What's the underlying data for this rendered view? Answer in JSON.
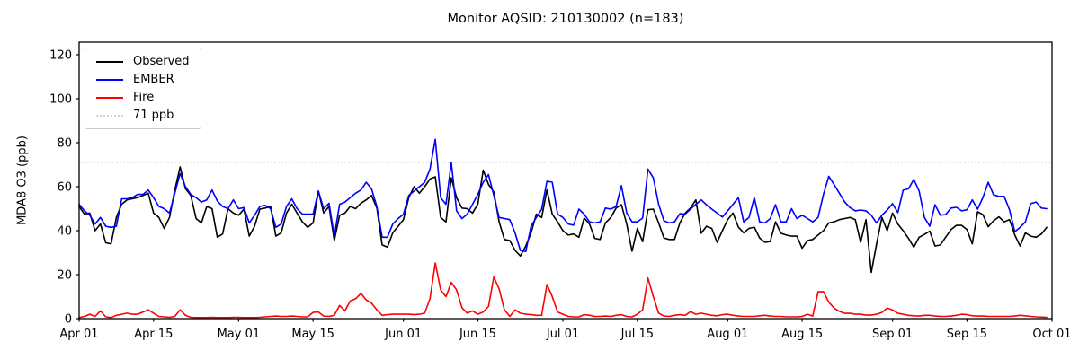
{
  "figure": {
    "title": "Monitor AQSID: 210130002 (n=183)"
  },
  "chart_data": {
    "type": "line",
    "title": "Monitor AQSID: 210130002 (n=183)",
    "xlabel": "",
    "ylabel": "MDA8 O3 (ppb)",
    "ylim": [
      0,
      125.7
    ],
    "y_ticks": [
      0,
      20,
      40,
      60,
      80,
      100,
      120
    ],
    "grid": false,
    "legend_position": "upper left",
    "x_days_total": 183,
    "x_tick_days": [
      0,
      14,
      30,
      44,
      61,
      75,
      91,
      105,
      122,
      136,
      153,
      167,
      183
    ],
    "x_tick_labels": [
      "Apr 01",
      "Apr 15",
      "May 01",
      "May 15",
      "Jun 01",
      "Jun 15",
      "Jul 01",
      "Jul 15",
      "Aug 01",
      "Aug 15",
      "Sep 01",
      "Sep 15",
      "Oct 01"
    ],
    "threshold": {
      "value": 71,
      "label": "71 ppb",
      "color": "#d3d3d3",
      "style": "dotted"
    },
    "series": [
      {
        "name": "Observed",
        "color": "#000000",
        "values": [
          51,
          47.5,
          48,
          40,
          43,
          34.5,
          34,
          46,
          52,
          54,
          54.5,
          55,
          56,
          57,
          48,
          46,
          41,
          46,
          58.5,
          69,
          59,
          56,
          45.5,
          43.5,
          51,
          50,
          37,
          38.5,
          50,
          48,
          47,
          49.8,
          37.5,
          42,
          49.8,
          50.3,
          51,
          37.5,
          39,
          48,
          52,
          48,
          44,
          41.5,
          43.5,
          58,
          48,
          51,
          35.5,
          47,
          48,
          51,
          50,
          52.5,
          54,
          56,
          50.3,
          33.5,
          32.5,
          39,
          42,
          45,
          55,
          60,
          57,
          60,
          63.5,
          64.5,
          46,
          44,
          64,
          55,
          50.3,
          50,
          48,
          52,
          67.5,
          61,
          57.5,
          44,
          36,
          35.5,
          31,
          28.5,
          33,
          39,
          47.5,
          46,
          58.5,
          47.5,
          44,
          40,
          38,
          38.5,
          37,
          45.7,
          43,
          36.5,
          36,
          43.5,
          46,
          50.3,
          51.8,
          43,
          30.6,
          41,
          35,
          49.5,
          49.8,
          43.5,
          36.7,
          36,
          36,
          43.5,
          48,
          50.3,
          54,
          38.8,
          42,
          41,
          34.7,
          40,
          45,
          48,
          41.6,
          39,
          41,
          41.6,
          36.7,
          34.7,
          35,
          44,
          38.8,
          38,
          37.5,
          37.5,
          32,
          35.5,
          36,
          38,
          40,
          43.5,
          44,
          45,
          45.5,
          46,
          45,
          34.7,
          45,
          21,
          34,
          46,
          40,
          48,
          43,
          40,
          36.5,
          32.5,
          37,
          38.3,
          39.8,
          33,
          33.5,
          37,
          40.5,
          42.4,
          42.4,
          40.5,
          34,
          48.6,
          47.3,
          41.8,
          44.5,
          46.3,
          44,
          45,
          38,
          33,
          39,
          37.5,
          37,
          38.5,
          41.5
        ]
      },
      {
        "name": "EMBER",
        "color": "#0000ff",
        "values": [
          52,
          49,
          47,
          43,
          46,
          42,
          41.5,
          42,
          54.5,
          54.5,
          55,
          56.5,
          56.5,
          58.5,
          55,
          51,
          50,
          48,
          57,
          66,
          60,
          56.5,
          55,
          53,
          54,
          58.5,
          53.5,
          51,
          50,
          54,
          50,
          50.5,
          43.5,
          47,
          51,
          51.5,
          50,
          41.5,
          43,
          51,
          54.5,
          50,
          47.5,
          47.5,
          47.5,
          58,
          50,
          52.5,
          37.5,
          52,
          53,
          55,
          57,
          58.5,
          62,
          59,
          51,
          37,
          37,
          43,
          45.5,
          47.5,
          56,
          58,
          60,
          62,
          68,
          81.5,
          55,
          52,
          71,
          49,
          45.5,
          47.5,
          52,
          56.5,
          62,
          65.5,
          56,
          46,
          45.5,
          45,
          39,
          31,
          30.5,
          42,
          46,
          49.8,
          62.5,
          62,
          47.5,
          46,
          43,
          42.5,
          49.8,
          47.5,
          44,
          43.5,
          44,
          50.3,
          49.8,
          51,
          60.5,
          48,
          44,
          44,
          45.7,
          68,
          64,
          52,
          44.5,
          43.5,
          44,
          47.7,
          47.5,
          49.8,
          52,
          54,
          51.8,
          49.8,
          48,
          46.2,
          49,
          52,
          55,
          44,
          46,
          55,
          44,
          43.5,
          45.5,
          51.8,
          44,
          44,
          50,
          45.5,
          47,
          45.5,
          44,
          46,
          56.5,
          64.7,
          61,
          57,
          53,
          50.5,
          49,
          49.4,
          49,
          47,
          43.5,
          47,
          49.4,
          52.3,
          48.2,
          58.4,
          59,
          63.3,
          58,
          46,
          42,
          51.8,
          47,
          47.3,
          50.3,
          50.6,
          49,
          49.5,
          54,
          49.8,
          55,
          62,
          56.3,
          55.6,
          55.6,
          49.5,
          39.5,
          41.5,
          44,
          52.3,
          53,
          50.3,
          50
        ]
      },
      {
        "name": "Fire",
        "color": "#ff0000",
        "values": [
          0.5,
          1,
          2,
          1,
          3.5,
          0.8,
          0.5,
          1.5,
          2,
          2.5,
          2,
          2,
          3,
          4,
          2.5,
          1,
          0.8,
          0.6,
          1,
          4,
          1.5,
          0.6,
          0.5,
          0.5,
          0.5,
          0.6,
          0.5,
          0.5,
          0.5,
          0.6,
          0.6,
          0.5,
          0.5,
          0.5,
          0.6,
          0.8,
          1,
          1.2,
          1,
          1,
          1.2,
          1,
          0.8,
          0.8,
          2.8,
          3,
          1.2,
          1,
          1.5,
          6,
          3.5,
          8,
          9,
          11.5,
          8.5,
          7,
          4,
          1.5,
          1.8,
          2,
          2,
          2,
          2,
          1.8,
          2,
          2.5,
          9,
          25.3,
          13,
          10,
          16.5,
          13,
          5,
          2.5,
          3.5,
          2,
          3,
          5.5,
          19,
          13.5,
          4,
          1,
          4,
          2.5,
          2,
          1.8,
          1.5,
          1.5,
          15.5,
          10,
          3,
          2,
          1,
          0.8,
          0.8,
          1.8,
          1.5,
          1,
          1,
          1.2,
          1,
          1.5,
          1.8,
          1,
          0.8,
          2,
          4,
          18.5,
          10,
          2.5,
          1.2,
          1,
          1.5,
          1.8,
          1.5,
          3.2,
          2,
          2.5,
          2,
          1.5,
          1.3,
          1.8,
          2,
          1.5,
          1.2,
          1,
          1,
          1,
          1.3,
          1.5,
          1.2,
          1,
          1,
          0.8,
          0.8,
          0.8,
          1,
          2,
          1.2,
          12.2,
          12.3,
          7.5,
          4.8,
          3.3,
          2.4,
          2.4,
          2,
          2,
          1.6,
          1.6,
          2,
          2.8,
          4.8,
          4,
          2.4,
          2,
          1.5,
          1.3,
          1.2,
          1.5,
          1.5,
          1.2,
          1,
          1,
          1.2,
          1.5,
          2,
          1.8,
          1.3,
          1.2,
          1.2,
          1,
          1,
          1,
          1,
          1,
          1.2,
          1.5,
          1.3,
          1,
          0.8,
          0.7,
          0.6
        ]
      }
    ]
  }
}
